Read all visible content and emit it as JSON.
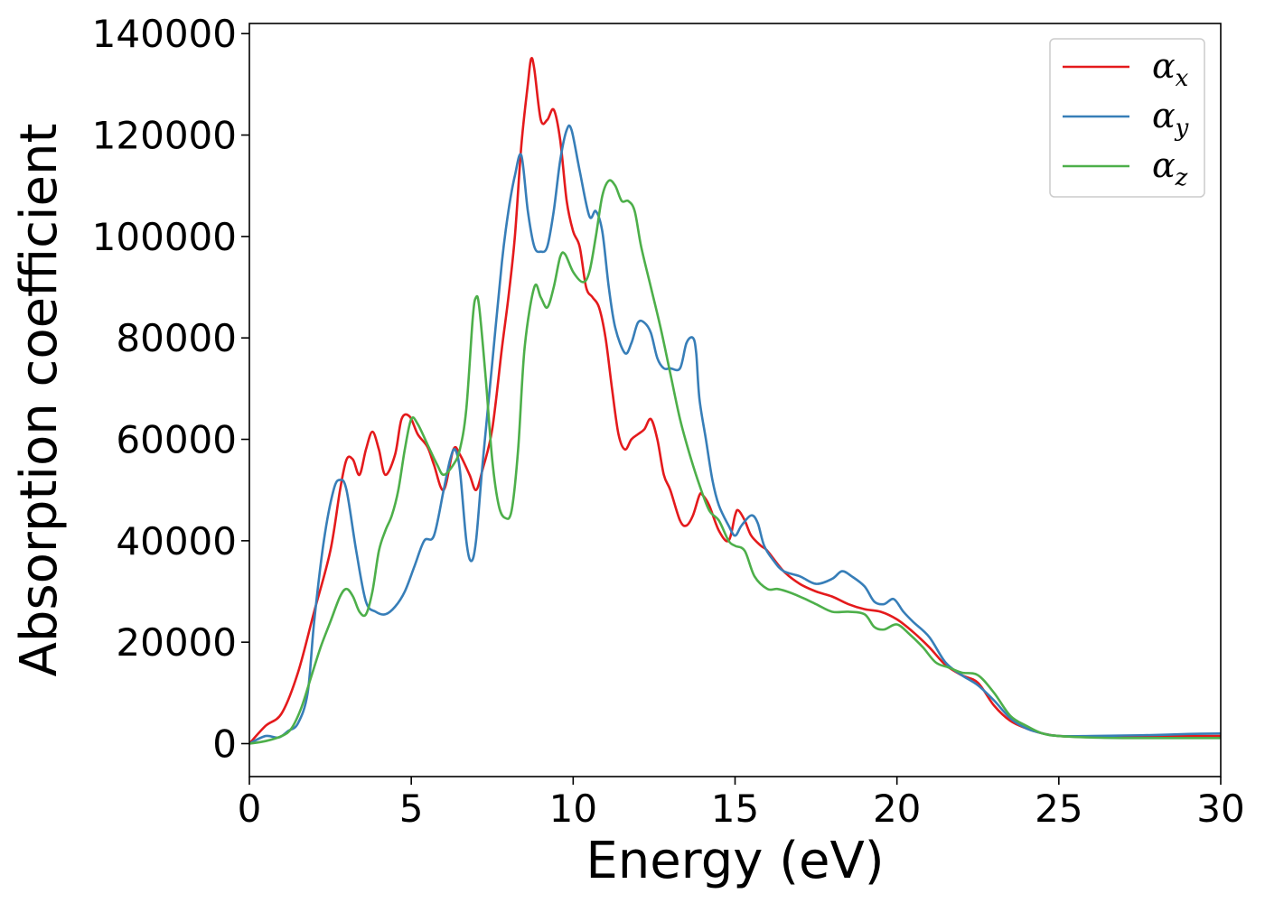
{
  "chart_data": {
    "type": "line",
    "xlabel": "Energy (eV)",
    "ylabel": "Absorption coefficient",
    "xlim": [
      0,
      30
    ],
    "ylim": [
      -6500,
      142000
    ],
    "xticks": [
      0,
      5,
      10,
      15,
      20,
      25,
      30
    ],
    "xtick_labels": [
      "0",
      "5",
      "10",
      "15",
      "20",
      "25",
      "30"
    ],
    "yticks": [
      0,
      20000,
      40000,
      60000,
      80000,
      100000,
      120000,
      140000
    ],
    "ytick_labels": [
      "0",
      "20000",
      "40000",
      "60000",
      "80000",
      "100000",
      "120000",
      "140000"
    ],
    "grid": false,
    "legend_position": "top-right",
    "series": [
      {
        "name": "αx",
        "symbol": "α",
        "subscript": "x",
        "color": "#e41a1c",
        "x": [
          0,
          0.5,
          1,
          1.5,
          2,
          2.5,
          2.8,
          3.0,
          3.2,
          3.4,
          3.6,
          3.8,
          4.0,
          4.2,
          4.5,
          4.7,
          4.95,
          5.2,
          5.5,
          5.7,
          6.0,
          6.3,
          6.5,
          6.8,
          7.0,
          7.2,
          7.5,
          7.8,
          8.0,
          8.2,
          8.4,
          8.6,
          8.7,
          8.8,
          9.0,
          9.2,
          9.4,
          9.6,
          9.8,
          10.0,
          10.2,
          10.4,
          10.6,
          10.8,
          11.0,
          11.2,
          11.4,
          11.6,
          11.8,
          12.0,
          12.2,
          12.4,
          12.6,
          12.8,
          13.0,
          13.3,
          13.5,
          13.7,
          13.9,
          14.0,
          14.2,
          14.5,
          14.8,
          15.0,
          15.1,
          15.3,
          15.5,
          15.8,
          16.0,
          16.5,
          17.0,
          17.5,
          18.0,
          18.5,
          19.0,
          19.5,
          20.0,
          20.5,
          21.0,
          21.5,
          22.0,
          22.5,
          23.0,
          23.5,
          24.0,
          24.5,
          25.0,
          26.0,
          27.0,
          28.0,
          29.0,
          30.0
        ],
        "y": [
          0,
          3500,
          6000,
          14000,
          26000,
          38000,
          50000,
          56000,
          56000,
          53000,
          58000,
          61500,
          58000,
          53000,
          57000,
          64000,
          64500,
          61000,
          58500,
          55000,
          50000,
          58000,
          57000,
          53000,
          50000,
          54000,
          62000,
          78000,
          88000,
          100000,
          118000,
          130000,
          135000,
          133000,
          123000,
          123000,
          125000,
          119000,
          107000,
          101000,
          98000,
          90000,
          88000,
          86000,
          80000,
          70000,
          61000,
          58000,
          60000,
          61000,
          62000,
          64000,
          60000,
          53000,
          50000,
          44000,
          43000,
          45000,
          49000,
          49000,
          47000,
          42000,
          40000,
          45000,
          46000,
          44000,
          41000,
          39000,
          38000,
          34000,
          31500,
          30000,
          29000,
          27500,
          26500,
          26000,
          24500,
          22000,
          19000,
          15500,
          13500,
          12000,
          7500,
          4500,
          3000,
          2000,
          1500,
          1300,
          1300,
          1400,
          1500,
          1500
        ]
      },
      {
        "name": "αy",
        "symbol": "α",
        "subscript": "y",
        "color": "#377eb8",
        "x": [
          0,
          0.5,
          0.9,
          1.2,
          1.5,
          1.8,
          2.0,
          2.3,
          2.6,
          2.8,
          3.0,
          3.3,
          3.6,
          3.9,
          4.2,
          4.5,
          4.8,
          5.1,
          5.4,
          5.7,
          6.0,
          6.2,
          6.35,
          6.5,
          6.7,
          6.85,
          7.0,
          7.2,
          7.5,
          7.8,
          8.0,
          8.2,
          8.4,
          8.6,
          8.8,
          9.0,
          9.2,
          9.4,
          9.6,
          9.8,
          9.95,
          10.2,
          10.5,
          10.7,
          10.9,
          11.1,
          11.3,
          11.6,
          11.8,
          12.0,
          12.2,
          12.4,
          12.6,
          12.8,
          13.0,
          13.3,
          13.5,
          13.7,
          13.8,
          13.9,
          14.1,
          14.3,
          14.5,
          14.8,
          15.0,
          15.2,
          15.5,
          15.7,
          15.9,
          16.2,
          16.5,
          17.0,
          17.5,
          18.0,
          18.3,
          18.6,
          19.0,
          19.3,
          19.6,
          19.9,
          20.2,
          20.5,
          21.0,
          21.5,
          22.0,
          22.5,
          23.0,
          23.5,
          24.0,
          24.5,
          25.0,
          26.0,
          27.0,
          28.0,
          29.0,
          30.0
        ],
        "y": [
          0,
          1500,
          1200,
          2500,
          4000,
          10000,
          24000,
          40000,
          50000,
          52000,
          50000,
          38000,
          28000,
          26000,
          25500,
          27000,
          30000,
          35000,
          40000,
          41000,
          50000,
          56000,
          58000,
          54000,
          40000,
          36000,
          40000,
          55000,
          75000,
          95000,
          105000,
          112000,
          116000,
          105000,
          98000,
          97000,
          98000,
          105000,
          115000,
          121000,
          121000,
          113000,
          104000,
          105000,
          101000,
          90000,
          82000,
          77000,
          79000,
          83000,
          83000,
          81000,
          76000,
          74000,
          74000,
          74000,
          79000,
          80000,
          77000,
          68000,
          60000,
          52000,
          47000,
          43000,
          41000,
          43000,
          45000,
          43500,
          39000,
          36000,
          34000,
          33000,
          31500,
          32500,
          34000,
          33000,
          31000,
          28000,
          27500,
          28500,
          26000,
          24000,
          21000,
          16000,
          13500,
          11500,
          8500,
          5000,
          3000,
          2000,
          1500,
          1500,
          1600,
          1700,
          1900,
          2000
        ]
      },
      {
        "name": "αz",
        "symbol": "α",
        "subscript": "z",
        "color": "#4daf4a",
        "x": [
          0,
          0.5,
          1.0,
          1.3,
          1.6,
          1.9,
          2.2,
          2.5,
          2.8,
          3.0,
          3.2,
          3.4,
          3.6,
          3.8,
          4.0,
          4.2,
          4.4,
          4.6,
          4.8,
          5.0,
          5.2,
          5.5,
          5.8,
          6.0,
          6.3,
          6.5,
          6.7,
          6.9,
          7.0,
          7.1,
          7.3,
          7.5,
          7.7,
          7.9,
          8.1,
          8.3,
          8.5,
          8.8,
          9.0,
          9.2,
          9.4,
          9.6,
          9.75,
          10.0,
          10.3,
          10.5,
          10.7,
          10.9,
          11.1,
          11.3,
          11.5,
          11.7,
          11.9,
          12.1,
          12.4,
          12.7,
          13.0,
          13.3,
          13.6,
          13.9,
          14.2,
          14.5,
          14.8,
          15.0,
          15.3,
          15.6,
          16.0,
          16.3,
          16.6,
          17.0,
          17.5,
          18.0,
          18.5,
          19.0,
          19.3,
          19.6,
          20.0,
          20.4,
          20.8,
          21.2,
          21.6,
          22.0,
          22.5,
          23.0,
          23.5,
          24.0,
          24.5,
          25.0,
          26.0,
          27.0,
          28.0,
          29.0,
          30.0
        ],
        "y": [
          0,
          500,
          1500,
          3000,
          7000,
          13000,
          19000,
          24000,
          29000,
          30500,
          29000,
          26000,
          25500,
          30000,
          38000,
          42000,
          45000,
          50000,
          58000,
          64000,
          63000,
          59000,
          55000,
          53000,
          55000,
          58000,
          66000,
          84000,
          88000,
          86000,
          72000,
          56000,
          47000,
          44500,
          46000,
          58000,
          78000,
          90000,
          88000,
          86000,
          90000,
          96000,
          96500,
          93000,
          91000,
          93000,
          100000,
          108000,
          111000,
          110000,
          107000,
          107000,
          105000,
          98000,
          90000,
          82000,
          73000,
          64000,
          57000,
          51000,
          46000,
          44000,
          40000,
          39000,
          38000,
          33000,
          30500,
          30500,
          30000,
          29000,
          27500,
          26000,
          26000,
          25500,
          23000,
          22500,
          23500,
          21500,
          19000,
          16000,
          15000,
          14000,
          13500,
          10000,
          5500,
          3500,
          2000,
          1500,
          1200,
          1100,
          1100,
          1100,
          1100
        ]
      }
    ]
  }
}
